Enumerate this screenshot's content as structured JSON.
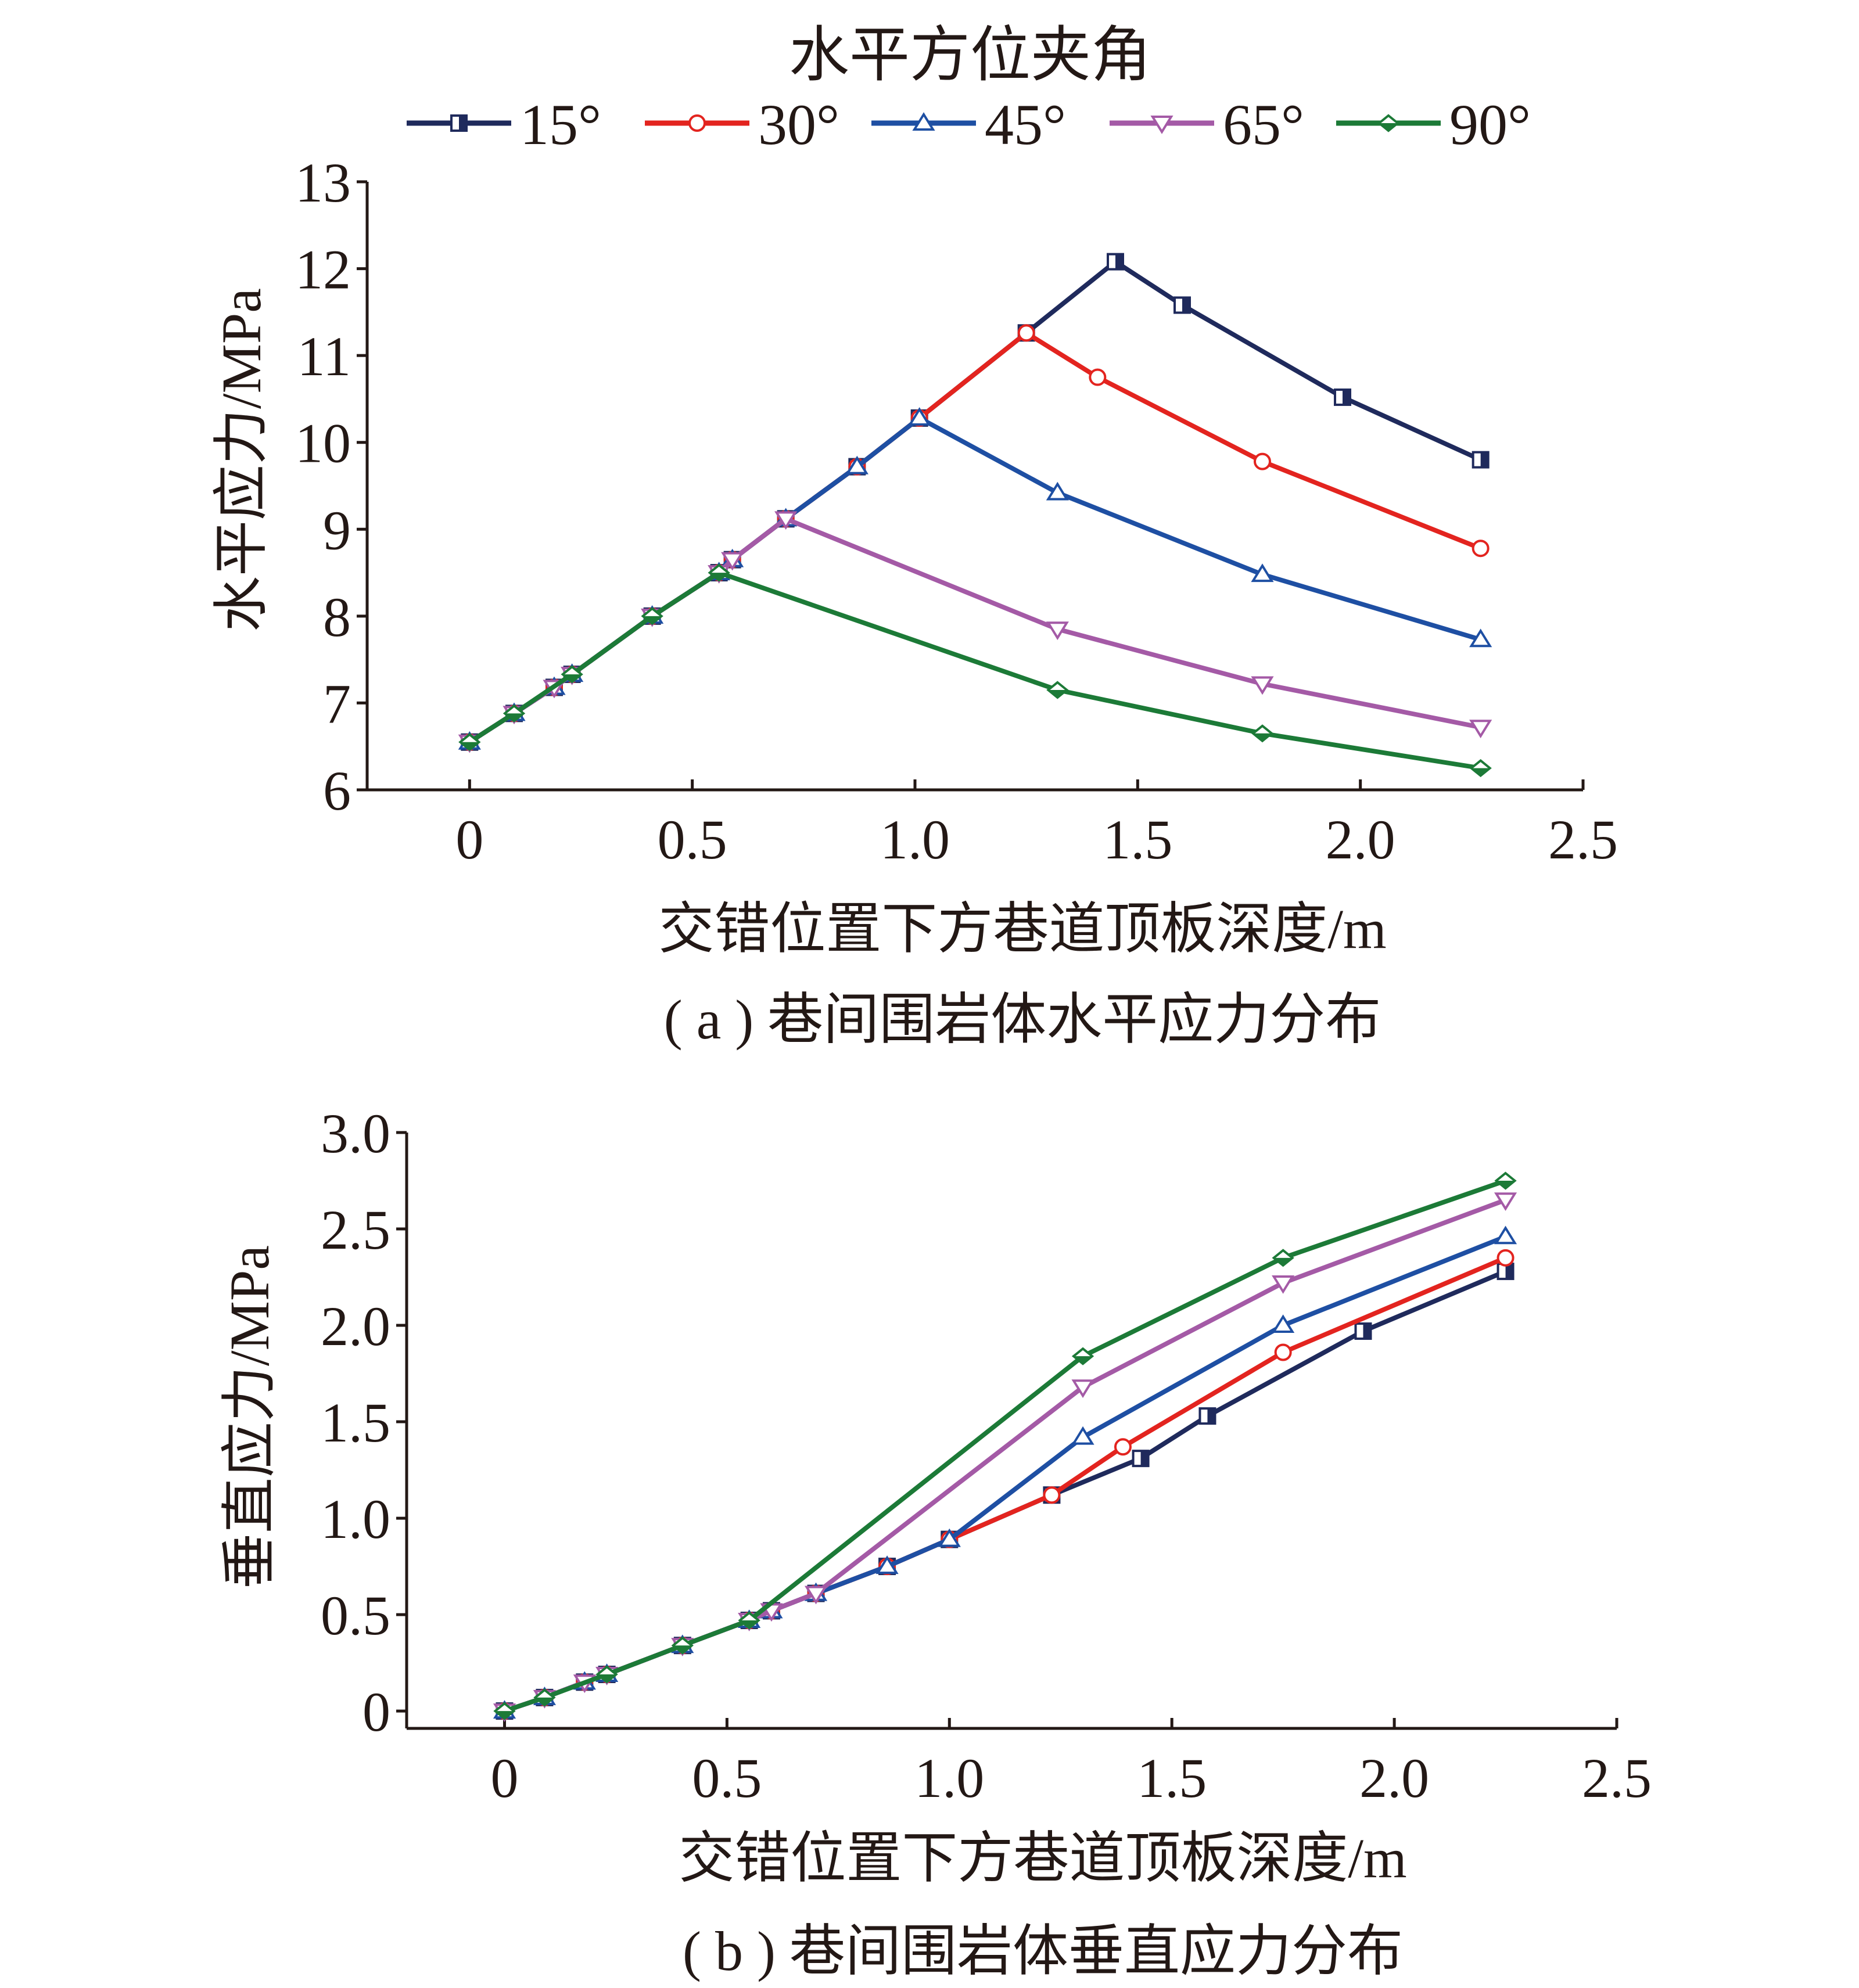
{
  "legend": {
    "title": "水平方位夹角",
    "entries": [
      {
        "label": "15°",
        "color": "#1f2a5c",
        "marker": "square"
      },
      {
        "label": "30°",
        "color": "#e3241f",
        "marker": "circle"
      },
      {
        "label": "45°",
        "color": "#1e4fa3",
        "marker": "triangle-up"
      },
      {
        "label": "65°",
        "color": "#a45aa6",
        "marker": "triangle-down"
      },
      {
        "label": "90°",
        "color": "#1c7a37",
        "marker": "diamond"
      }
    ]
  },
  "chart_data": [
    {
      "type": "line",
      "caption": "( a ) 巷间围岩体水平应力分布",
      "xlabel": "交错位置下方巷道顶板深度/m",
      "ylabel": "水平应力/MPa",
      "xlim": [
        -0.23,
        2.5
      ],
      "ylim": [
        6,
        13
      ],
      "xticks": [
        "0",
        "0.5",
        "1.0",
        "1.5",
        "2.0",
        "2.5"
      ],
      "yticks": [
        "6",
        "7",
        "8",
        "9",
        "10",
        "11",
        "12",
        "13"
      ],
      "series": [
        {
          "name": "15°",
          "x": [
            0,
            0.1,
            0.19,
            0.23,
            0.41,
            0.56,
            0.59,
            0.71,
            0.87,
            1.01,
            1.25,
            1.45,
            1.6,
            1.96,
            2.27
          ],
          "y": [
            6.55,
            6.88,
            7.18,
            7.33,
            8.0,
            8.5,
            8.65,
            9.12,
            9.72,
            10.28,
            11.26,
            12.08,
            11.58,
            10.52,
            9.8
          ]
        },
        {
          "name": "30°",
          "x": [
            0,
            0.1,
            0.19,
            0.23,
            0.41,
            0.56,
            0.59,
            0.71,
            0.87,
            1.01,
            1.25,
            1.41,
            1.78,
            2.27
          ],
          "y": [
            6.55,
            6.88,
            7.18,
            7.33,
            8.0,
            8.5,
            8.65,
            9.12,
            9.72,
            10.28,
            11.26,
            10.75,
            9.78,
            8.78
          ]
        },
        {
          "name": "45°",
          "x": [
            0,
            0.1,
            0.19,
            0.23,
            0.41,
            0.56,
            0.59,
            0.71,
            0.87,
            1.01,
            1.32,
            1.78,
            2.27
          ],
          "y": [
            6.55,
            6.88,
            7.18,
            7.33,
            8.0,
            8.5,
            8.65,
            9.12,
            9.72,
            10.28,
            9.42,
            8.48,
            7.73
          ]
        },
        {
          "name": "65°",
          "x": [
            0,
            0.1,
            0.19,
            0.23,
            0.41,
            0.56,
            0.59,
            0.71,
            1.32,
            1.78,
            2.27
          ],
          "y": [
            6.55,
            6.88,
            7.18,
            7.33,
            8.0,
            8.5,
            8.65,
            9.12,
            7.85,
            7.22,
            6.72
          ]
        },
        {
          "name": "90°",
          "x": [
            0,
            0.1,
            0.23,
            0.41,
            0.56,
            1.32,
            1.78,
            2.27
          ],
          "y": [
            6.55,
            6.88,
            7.33,
            8.0,
            8.5,
            7.15,
            6.65,
            6.25
          ]
        }
      ]
    },
    {
      "type": "line",
      "caption": "( b ) 巷间围岩体垂直应力分布",
      "xlabel": "交错位置下方巷道顶板深度/m",
      "ylabel": "垂直应力/MPa",
      "xlim": [
        -0.22,
        2.5
      ],
      "ylim": [
        -0.09,
        3.0
      ],
      "xticks": [
        "0",
        "0.5",
        "1.0",
        "1.5",
        "2.0",
        "2.5"
      ],
      "yticks": [
        "0",
        "0.5",
        "1.0",
        "1.5",
        "2.0",
        "2.5",
        "3.0"
      ],
      "series": [
        {
          "name": "15°",
          "x": [
            0,
            0.09,
            0.18,
            0.23,
            0.4,
            0.55,
            0.6,
            0.7,
            0.86,
            1.0,
            1.23,
            1.43,
            1.58,
            1.93,
            2.25
          ],
          "y": [
            0,
            0.07,
            0.15,
            0.19,
            0.34,
            0.47,
            0.52,
            0.61,
            0.75,
            0.89,
            1.12,
            1.31,
            1.53,
            1.97,
            2.28
          ]
        },
        {
          "name": "30°",
          "x": [
            0,
            0.09,
            0.18,
            0.23,
            0.4,
            0.55,
            0.6,
            0.7,
            0.86,
            1.0,
            1.23,
            1.39,
            1.75,
            2.25
          ],
          "y": [
            0,
            0.07,
            0.15,
            0.19,
            0.34,
            0.47,
            0.52,
            0.61,
            0.75,
            0.89,
            1.12,
            1.37,
            1.86,
            2.35
          ]
        },
        {
          "name": "45°",
          "x": [
            0,
            0.09,
            0.18,
            0.23,
            0.4,
            0.55,
            0.6,
            0.7,
            0.86,
            1.0,
            1.3,
            1.75,
            2.25
          ],
          "y": [
            0,
            0.07,
            0.15,
            0.19,
            0.34,
            0.47,
            0.52,
            0.61,
            0.75,
            0.89,
            1.42,
            2.0,
            2.46
          ]
        },
        {
          "name": "65°",
          "x": [
            0,
            0.09,
            0.18,
            0.23,
            0.4,
            0.55,
            0.6,
            0.7,
            1.3,
            1.75,
            2.25
          ],
          "y": [
            0,
            0.07,
            0.15,
            0.19,
            0.34,
            0.47,
            0.52,
            0.61,
            1.68,
            2.22,
            2.65
          ]
        },
        {
          "name": "90°",
          "x": [
            0,
            0.09,
            0.23,
            0.4,
            0.55,
            1.3,
            1.75,
            2.25
          ],
          "y": [
            0,
            0.07,
            0.19,
            0.34,
            0.47,
            1.84,
            2.35,
            2.75
          ]
        }
      ]
    }
  ]
}
